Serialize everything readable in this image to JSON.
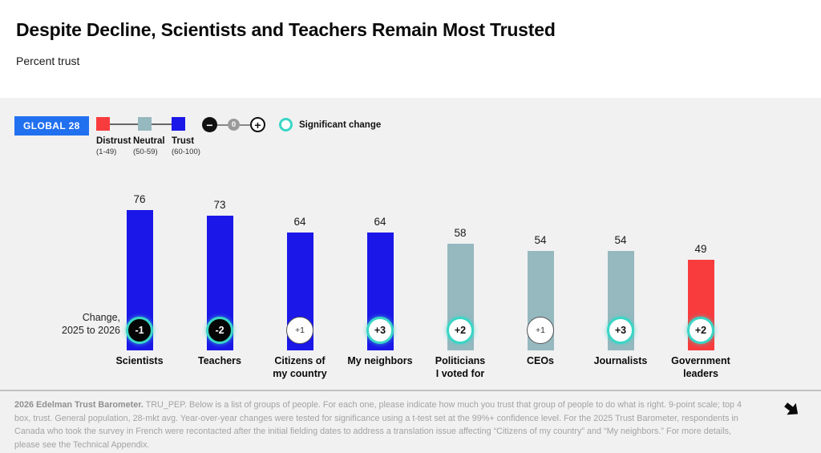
{
  "header": {
    "title": "Despite Decline, Scientists and Teachers Remain Most Trusted",
    "subtitle": "Percent trust"
  },
  "controls": {
    "region_badge": "GLOBAL 28",
    "scale_legend": [
      {
        "label": "Distrust",
        "range": "(1-49)"
      },
      {
        "label": "Neutral",
        "range": "(50-59)"
      },
      {
        "label": "Trust",
        "range": "(60-100)"
      }
    ],
    "stepper": {
      "minus": "−",
      "zero": "0",
      "plus": "+"
    },
    "significant_change_label": "Significant change"
  },
  "colors": {
    "trust": "#1b17e8",
    "neutral": "#96b8bf",
    "distrust": "#f83c3e",
    "significant": "#3ad6c6",
    "badge_region": "#2170f0"
  },
  "chart_data": {
    "type": "bar",
    "title": "Despite Decline, Scientists and Teachers Remain Most Trusted",
    "ylabel": "Percent trust",
    "ylim": [
      0,
      100
    ],
    "legend_bands": {
      "distrust": "1-49",
      "neutral": "50-59",
      "trust": "60-100"
    },
    "categories": [
      "Scientists",
      "Teachers",
      "Citizens of\nmy country",
      "My neighbors",
      "Politicians\nI voted for",
      "CEOs",
      "Journalists",
      "Government\nleaders"
    ],
    "values": [
      76,
      73,
      64,
      64,
      58,
      54,
      54,
      49
    ],
    "change_2025_to_2026": [
      -1,
      -2,
      1,
      3,
      2,
      1,
      3,
      2
    ],
    "change_labels": [
      "-1",
      "-2",
      "+1",
      "+3",
      "+2",
      "+1",
      "+3",
      "+2"
    ],
    "significant": [
      true,
      true,
      false,
      true,
      true,
      false,
      true,
      true
    ],
    "annotation": "Change,\n2025 to 2026"
  },
  "footer": {
    "lead": "2026 Edelman Trust Barometer.",
    "text": " TRU_PEP. Below is a list of groups of people. For each one, please indicate how much you trust that group of people to do what is right. 9-point scale; top 4 box, trust. General population, 28-mkt avg. Year-over-year changes were tested for significance using a t-test set at the 99%+ confidence level. For the 2025 Trust Barometer, respondents in Canada who took the survey in French were recontacted after the initial fielding dates to address a translation issue affecting “Citizens of my country” and “My neighbors.” For more details, please see the Technical Appendix."
  }
}
